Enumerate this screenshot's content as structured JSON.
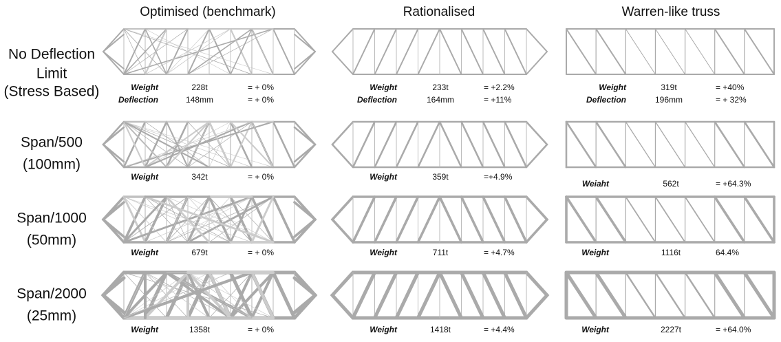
{
  "columns": [
    "Optimised (benchmark)",
    "Rationalised",
    "Warren-like truss"
  ],
  "rows": [
    {
      "label": [
        "No Deflection",
        "Limit",
        "(Stress Based)"
      ],
      "cells": [
        {
          "weight": {
            "label": "Weight",
            "value": "228t",
            "change": "= + 0%"
          },
          "deflection": {
            "label": "Deflection",
            "value": "148mm",
            "change": "= + 0%"
          }
        },
        {
          "weight": {
            "label": "Weight",
            "value": "233t",
            "change": "= +2.2%"
          },
          "deflection": {
            "label": "Deflection",
            "value": "164mm",
            "change": "= +11%"
          }
        },
        {
          "weight": {
            "label": "Weight",
            "value": "319t",
            "change": "= +40%"
          },
          "deflection": {
            "label": "Deflection",
            "value": "196mm",
            "change": "= + 32%"
          }
        }
      ]
    },
    {
      "label": [
        "Span/500",
        "(100mm)"
      ],
      "cells": [
        {
          "weight": {
            "label": "Weight",
            "value": "342t",
            "change": "= + 0%"
          }
        },
        {
          "weight": {
            "label": "Weight",
            "value": "359t",
            "change": "=+4.9%"
          }
        },
        {
          "weight": {
            "label": "Weiaht",
            "value": "562t",
            "change": "= +64.3%"
          }
        }
      ]
    },
    {
      "label": [
        "Span/1000",
        "(50mm)"
      ],
      "cells": [
        {
          "weight": {
            "label": "Weight",
            "value": "679t",
            "change": "= + 0%"
          }
        },
        {
          "weight": {
            "label": "Weight",
            "value": "711t",
            "change": "= +4.7%"
          }
        },
        {
          "weight": {
            "label": "Weight",
            "value": "1116t",
            "change": "64.4%"
          }
        }
      ]
    },
    {
      "label": [
        "Span/2000",
        "(25mm)"
      ],
      "cells": [
        {
          "weight": {
            "label": "Weight",
            "value": "1358t",
            "change": "= + 0%"
          }
        },
        {
          "weight": {
            "label": "Weight",
            "value": "1418t",
            "change": "= +4.4%"
          }
        },
        {
          "weight": {
            "label": "Weight",
            "value": "2227t",
            "change": "= +64.0%"
          }
        }
      ]
    }
  ]
}
